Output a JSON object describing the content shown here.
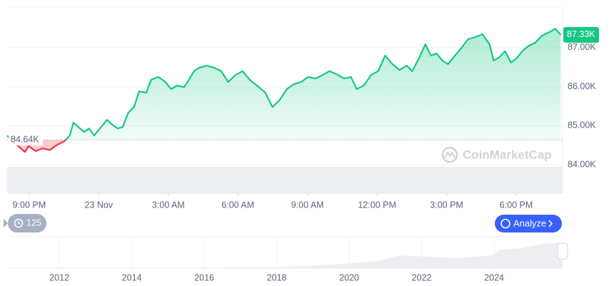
{
  "chart_data": {
    "type": "line",
    "color": "#16c784",
    "down_color": "#ea3943",
    "x": [
      -0.95,
      -0.65,
      -0.18,
      -0.03,
      0.28,
      0.58,
      0.89,
      1.2,
      1.51,
      1.75,
      1.91,
      2.12,
      2.37,
      2.58,
      2.8,
      3.05,
      3.35,
      3.6,
      3.82,
      4.03,
      4.28,
      4.52,
      4.74,
      5.05,
      5.26,
      5.57,
      5.88,
      6.12,
      6.37,
      6.68,
      6.89,
      7.11,
      7.35,
      7.66,
      7.97,
      8.28,
      8.58,
      8.89,
      9.2,
      9.51,
      9.82,
      10.18,
      10.49,
      10.8,
      11.11,
      11.42,
      11.72,
      12.03,
      12.34,
      12.65,
      12.95,
      13.26,
      13.57,
      13.88,
      14.12,
      14.43,
      14.74,
      15.05,
      15.35,
      15.66,
      15.97,
      16.28,
      16.52,
      16.83,
      17.08,
      17.32,
      17.57,
      17.82,
      18.06,
      18.31,
      18.62,
      18.92,
      19.23,
      19.54,
      19.85,
      20.03,
      20.28,
      20.52,
      20.77,
      21.02,
      21.26,
      21.51,
      21.82,
      22.12,
      22.43,
      22.68,
      22.92
    ],
    "values": [
      84.75,
      84.57,
      84.33,
      84.48,
      84.35,
      84.42,
      84.38,
      84.51,
      84.6,
      84.75,
      85.08,
      84.97,
      84.84,
      84.93,
      84.75,
      84.93,
      85.15,
      85.02,
      84.93,
      84.97,
      85.34,
      85.48,
      85.88,
      85.85,
      86.18,
      86.25,
      86.12,
      85.94,
      86.03,
      85.99,
      86.18,
      86.4,
      86.49,
      86.54,
      86.49,
      86.4,
      86.12,
      86.3,
      86.4,
      86.18,
      86.03,
      85.85,
      85.48,
      85.66,
      85.94,
      86.07,
      86.12,
      86.25,
      86.21,
      86.3,
      86.4,
      86.32,
      86.21,
      86.25,
      85.94,
      86.03,
      86.3,
      86.4,
      86.8,
      86.58,
      86.43,
      86.54,
      86.4,
      86.76,
      87.09,
      86.8,
      86.85,
      86.67,
      86.58,
      86.76,
      86.98,
      87.22,
      87.27,
      87.35,
      87.09,
      86.67,
      86.76,
      86.91,
      86.62,
      86.73,
      86.91,
      87.04,
      87.13,
      87.31,
      87.4,
      87.49,
      87.33
    ],
    "xlim": [
      -0.95,
      23
    ],
    "xticks": [
      {
        "value": 0,
        "label": "9:00 PM"
      },
      {
        "value": 3,
        "label": "23 Nov"
      },
      {
        "value": 6,
        "label": "3:00 AM"
      },
      {
        "value": 9,
        "label": "6:00 AM"
      },
      {
        "value": 12,
        "label": "9:00 AM"
      },
      {
        "value": 15,
        "label": "12:00 PM"
      },
      {
        "value": 18,
        "label": "3:00 PM"
      },
      {
        "value": 21,
        "label": "6:00 PM"
      }
    ],
    "ylim": [
      83.27,
      88.04
    ],
    "yticks": [
      {
        "value": 84,
        "label": "84.00K"
      },
      {
        "value": 85,
        "label": "85.00K"
      },
      {
        "value": 86,
        "label": "86.00K"
      },
      {
        "value": 87,
        "label": "87.00K"
      }
    ],
    "baseline": {
      "value": 84.64,
      "label": "84.64K"
    },
    "current": {
      "value": 87.33,
      "label": "87.33K"
    },
    "watermark": "CoinMarketCap",
    "history_count": 125,
    "analyze": "Analyze",
    "overview": {
      "xlim": [
        2010.56,
        2025.89
      ],
      "xticks": [
        2012,
        2014,
        2016,
        2018,
        2020,
        2022,
        2024
      ]
    }
  }
}
